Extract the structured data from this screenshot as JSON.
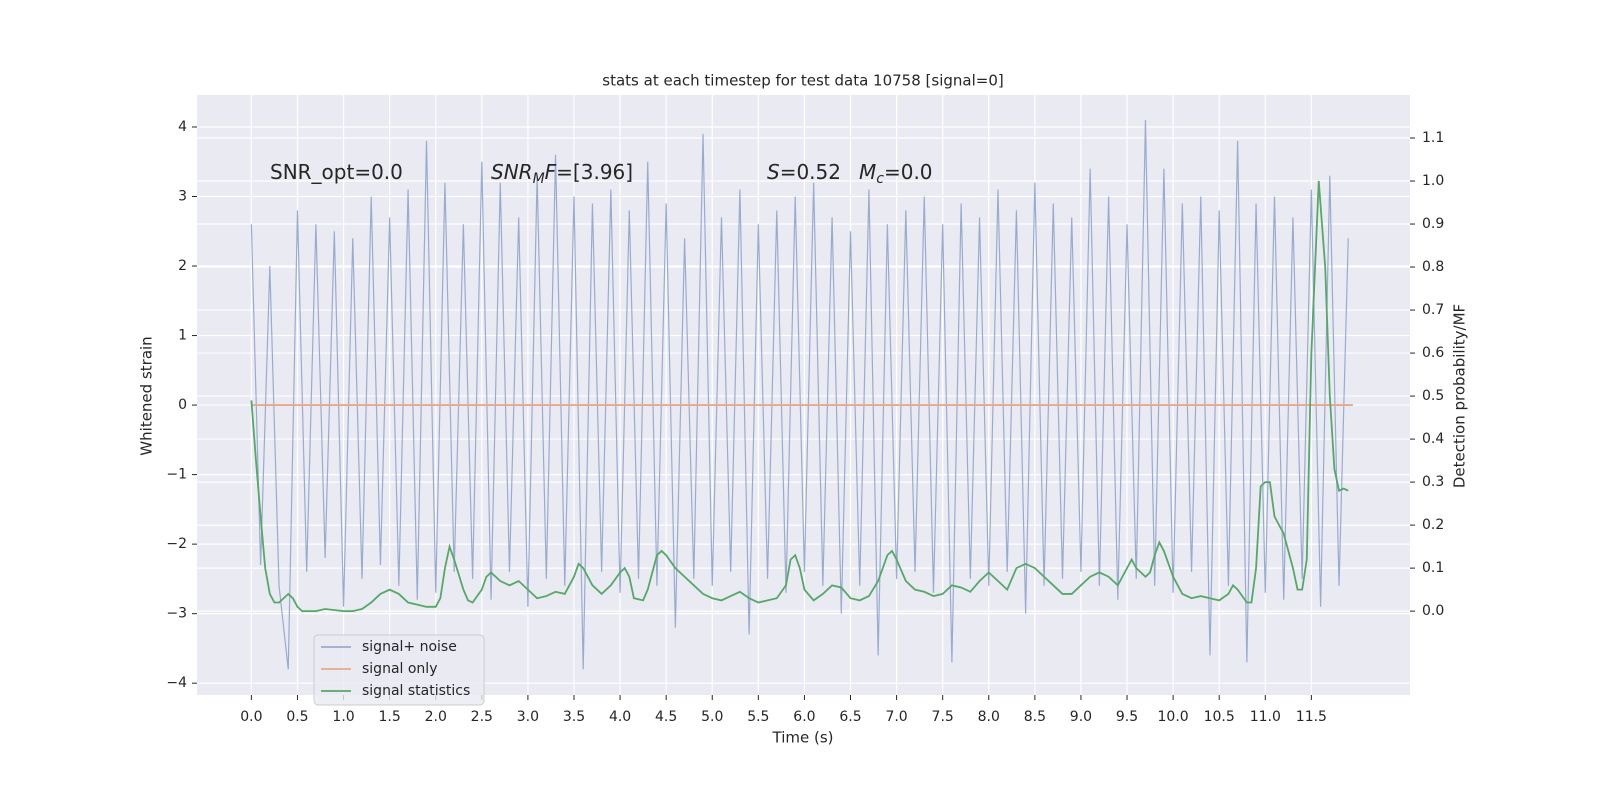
{
  "chart_data": {
    "type": "line",
    "title": "stats at each timestep for test data 10758 [signal=0]",
    "xlabel": "Time (s)",
    "ylabel": "Whitened strain",
    "y2label": "Detection probability/MF",
    "xlim": [
      -0.59,
      12.57
    ],
    "ylim": [
      -4.17,
      4.46
    ],
    "y2lim": [
      -0.195,
      1.2
    ],
    "xticks": [
      {
        "value": 0,
        "label": "0.0"
      },
      {
        "value": 0.5,
        "label": "0.5"
      },
      {
        "value": 1,
        "label": "1.0"
      },
      {
        "value": 1.5,
        "label": "1.5"
      },
      {
        "value": 2,
        "label": "2.0"
      },
      {
        "value": 2.5,
        "label": "2.5"
      },
      {
        "value": 3,
        "label": "3.0"
      },
      {
        "value": 3.5,
        "label": "3.5"
      },
      {
        "value": 4,
        "label": "4.0"
      },
      {
        "value": 4.5,
        "label": "4.5"
      },
      {
        "value": 5,
        "label": "5.0"
      },
      {
        "value": 5.5,
        "label": "5.5"
      },
      {
        "value": 6,
        "label": "6.0"
      },
      {
        "value": 6.5,
        "label": "6.5"
      },
      {
        "value": 7,
        "label": "7.0"
      },
      {
        "value": 7.5,
        "label": "7.5"
      },
      {
        "value": 8,
        "label": "8.0"
      },
      {
        "value": 8.5,
        "label": "8.5"
      },
      {
        "value": 9,
        "label": "9.0"
      },
      {
        "value": 9.5,
        "label": "9.5"
      },
      {
        "value": 10,
        "label": "10.0"
      },
      {
        "value": 10.5,
        "label": "10.5"
      },
      {
        "value": 11,
        "label": "11.0"
      },
      {
        "value": 11.5,
        "label": "11.5"
      }
    ],
    "yticks": [
      4,
      3,
      2,
      1,
      0,
      {
        "value": -1,
        "label": "−1"
      },
      {
        "value": -2,
        "label": "−2"
      },
      {
        "value": -3,
        "label": "−3"
      },
      {
        "value": -4,
        "label": "−4"
      }
    ],
    "y2ticks": [
      {
        "value": 1.1,
        "label": "1.1"
      },
      {
        "value": 1,
        "label": "1.0"
      },
      {
        "value": 0.9,
        "label": "0.9"
      },
      {
        "value": 0.8,
        "label": "0.8"
      },
      {
        "value": 0.7,
        "label": "0.7"
      },
      {
        "value": 0.6,
        "label": "0.6"
      },
      {
        "value": 0.5,
        "label": "0.5"
      },
      {
        "value": 0.4,
        "label": "0.4"
      },
      {
        "value": 0.3,
        "label": "0.3"
      },
      {
        "value": 0.2,
        "label": "0.2"
      },
      {
        "value": 0.1,
        "label": "0.1"
      },
      {
        "value": 0,
        "label": "0.0"
      }
    ],
    "grid": true,
    "legend": "lower left",
    "annotations": [
      {
        "parts": [
          {
            "text": "SNR_opt=0.0"
          }
        ]
      },
      {
        "parts": [
          {
            "text": "SNR",
            "style": "italic"
          },
          {
            "text": "M",
            "style": "sub"
          },
          {
            "text": "F",
            "style": "italic"
          },
          {
            "text": "=[3.96]"
          }
        ]
      },
      {
        "parts": [
          {
            "text": "S",
            "style": "italic"
          },
          {
            "text": "=0.52"
          }
        ]
      },
      {
        "parts": [
          {
            "text": "M",
            "style": "italic"
          },
          {
            "text": "c",
            "style": "sub"
          },
          {
            "text": "=0.0"
          }
        ]
      }
    ],
    "series": [
      {
        "name": "signal+ noise",
        "color": "#9aabd0",
        "x": [
          0,
          0.1,
          0.2,
          0.3,
          0.4,
          0.5,
          0.6,
          0.7,
          0.8,
          0.9,
          1,
          1.1,
          1.2,
          1.3,
          1.4,
          1.5,
          1.6,
          1.7,
          1.8,
          1.9,
          2,
          2.1,
          2.2,
          2.3,
          2.4,
          2.5,
          2.6,
          2.7,
          2.8,
          2.9,
          3,
          3.1,
          3.2,
          3.3,
          3.4,
          3.5,
          3.6,
          3.7,
          3.8,
          3.9,
          4,
          4.1,
          4.2,
          4.3,
          4.4,
          4.5,
          4.6,
          4.7,
          4.8,
          4.9,
          5,
          5.1,
          5.2,
          5.3,
          5.4,
          5.5,
          5.6,
          5.7,
          5.8,
          5.9,
          6,
          6.1,
          6.2,
          6.3,
          6.4,
          6.5,
          6.6,
          6.7,
          6.8,
          6.9,
          7,
          7.1,
          7.2,
          7.3,
          7.4,
          7.5,
          7.6,
          7.7,
          7.8,
          7.9,
          8,
          8.1,
          8.2,
          8.3,
          8.4,
          8.5,
          8.6,
          8.7,
          8.8,
          8.9,
          9,
          9.1,
          9.2,
          9.3,
          9.4,
          9.5,
          9.6,
          9.7,
          9.8,
          9.9,
          10,
          10.1,
          10.2,
          10.3,
          10.4,
          10.5,
          10.6,
          10.7,
          10.8,
          10.9,
          11,
          11.1,
          11.2,
          11.3,
          11.4,
          11.5,
          11.6,
          11.7,
          11.8,
          11.9
        ],
        "values": [
          2.6,
          -2.3,
          2.0,
          -2.6,
          -3.8,
          2.8,
          -2.4,
          2.6,
          -2.2,
          2.5,
          -2.9,
          2.4,
          -2.5,
          3.0,
          -2.3,
          2.7,
          -2.6,
          3.1,
          -2.8,
          3.8,
          -2.7,
          3.2,
          -2.4,
          2.6,
          -2.5,
          3.5,
          -2.8,
          3.2,
          -2.4,
          2.7,
          -2.9,
          3.3,
          -2.5,
          3.6,
          -2.6,
          3.0,
          -3.8,
          2.9,
          -2.4,
          3.1,
          -2.7,
          2.8,
          -2.5,
          3.5,
          -2.6,
          2.9,
          -3.2,
          2.4,
          -2.5,
          3.9,
          -2.6,
          2.7,
          -2.4,
          3.1,
          -3.3,
          2.6,
          -2.5,
          2.8,
          -2.7,
          3.0,
          -2.4,
          3.2,
          -2.6,
          2.7,
          -3.0,
          2.5,
          -2.6,
          3.1,
          -3.6,
          2.6,
          -2.5,
          2.8,
          -2.4,
          3.0,
          -2.7,
          2.6,
          -3.7,
          2.9,
          -2.5,
          2.7,
          -2.6,
          3.1,
          -2.4,
          2.8,
          -3.0,
          3.2,
          -2.6,
          2.9,
          -2.5,
          2.7,
          -2.4,
          3.4,
          -2.6,
          3.0,
          -2.8,
          2.6,
          -2.5,
          4.1,
          -2.6,
          3.4,
          -2.7,
          2.9,
          -2.4,
          3.0,
          -3.6,
          2.8,
          -2.6,
          3.8,
          -3.7,
          2.9,
          -2.7,
          3.0,
          -2.8,
          2.7,
          -2.5,
          3.1,
          -2.9,
          3.3,
          -2.6,
          2.4
        ]
      },
      {
        "name": "signal only",
        "color": "#e8a98a",
        "x": [
          0,
          11.95
        ],
        "values": [
          0,
          0
        ]
      },
      {
        "name": "signal statistics",
        "color": "#55a868",
        "axis": "y2",
        "x": [
          0,
          0.05,
          0.1,
          0.15,
          0.2,
          0.25,
          0.3,
          0.35,
          0.4,
          0.45,
          0.5,
          0.55,
          0.7,
          0.8,
          1.0,
          1.1,
          1.2,
          1.3,
          1.4,
          1.5,
          1.6,
          1.7,
          1.8,
          1.9,
          2.0,
          2.05,
          2.1,
          2.15,
          2.2,
          2.3,
          2.35,
          2.4,
          2.5,
          2.55,
          2.6,
          2.7,
          2.8,
          2.9,
          3.0,
          3.1,
          3.2,
          3.3,
          3.4,
          3.5,
          3.55,
          3.6,
          3.7,
          3.8,
          3.9,
          4.0,
          4.05,
          4.1,
          4.15,
          4.25,
          4.3,
          4.4,
          4.45,
          4.5,
          4.6,
          4.7,
          4.8,
          4.9,
          5.0,
          5.1,
          5.2,
          5.3,
          5.4,
          5.5,
          5.6,
          5.7,
          5.8,
          5.85,
          5.9,
          5.95,
          6.0,
          6.1,
          6.2,
          6.3,
          6.4,
          6.5,
          6.6,
          6.7,
          6.8,
          6.9,
          6.95,
          7.0,
          7.1,
          7.2,
          7.3,
          7.4,
          7.5,
          7.6,
          7.7,
          7.8,
          7.9,
          8.0,
          8.1,
          8.2,
          8.3,
          8.4,
          8.5,
          8.6,
          8.7,
          8.8,
          8.9,
          9.0,
          9.1,
          9.2,
          9.3,
          9.4,
          9.5,
          9.55,
          9.6,
          9.7,
          9.75,
          9.8,
          9.85,
          9.9,
          10.0,
          10.1,
          10.2,
          10.3,
          10.4,
          10.5,
          10.6,
          10.65,
          10.7,
          10.8,
          10.85,
          10.9,
          10.95,
          11.0,
          11.05,
          11.1,
          11.2,
          11.3,
          11.35,
          11.4,
          11.45,
          11.5,
          11.58,
          11.65,
          11.7,
          11.75,
          11.8,
          11.85,
          11.9
        ],
        "values": [
          0.49,
          0.35,
          0.22,
          0.1,
          0.04,
          0.02,
          0.02,
          0.03,
          0.04,
          0.03,
          0.01,
          0.0,
          0.0,
          0.005,
          0.0,
          0.0,
          0.005,
          0.02,
          0.04,
          0.05,
          0.04,
          0.02,
          0.015,
          0.01,
          0.01,
          0.03,
          0.1,
          0.15,
          0.12,
          0.05,
          0.025,
          0.02,
          0.05,
          0.08,
          0.09,
          0.07,
          0.06,
          0.07,
          0.05,
          0.03,
          0.035,
          0.045,
          0.04,
          0.08,
          0.11,
          0.1,
          0.06,
          0.04,
          0.06,
          0.09,
          0.1,
          0.08,
          0.03,
          0.025,
          0.05,
          0.13,
          0.14,
          0.13,
          0.1,
          0.08,
          0.06,
          0.04,
          0.03,
          0.025,
          0.035,
          0.045,
          0.03,
          0.02,
          0.025,
          0.03,
          0.06,
          0.12,
          0.13,
          0.1,
          0.05,
          0.025,
          0.04,
          0.06,
          0.055,
          0.03,
          0.025,
          0.035,
          0.07,
          0.13,
          0.14,
          0.12,
          0.07,
          0.05,
          0.045,
          0.035,
          0.04,
          0.06,
          0.055,
          0.045,
          0.07,
          0.09,
          0.07,
          0.05,
          0.1,
          0.11,
          0.1,
          0.08,
          0.06,
          0.04,
          0.04,
          0.06,
          0.08,
          0.09,
          0.08,
          0.06,
          0.1,
          0.12,
          0.1,
          0.08,
          0.09,
          0.13,
          0.16,
          0.14,
          0.08,
          0.04,
          0.03,
          0.035,
          0.03,
          0.025,
          0.04,
          0.06,
          0.05,
          0.02,
          0.02,
          0.1,
          0.29,
          0.3,
          0.3,
          0.22,
          0.18,
          0.1,
          0.05,
          0.05,
          0.12,
          0.6,
          1.0,
          0.8,
          0.5,
          0.33,
          0.28,
          0.285,
          0.28
        ]
      }
    ]
  }
}
